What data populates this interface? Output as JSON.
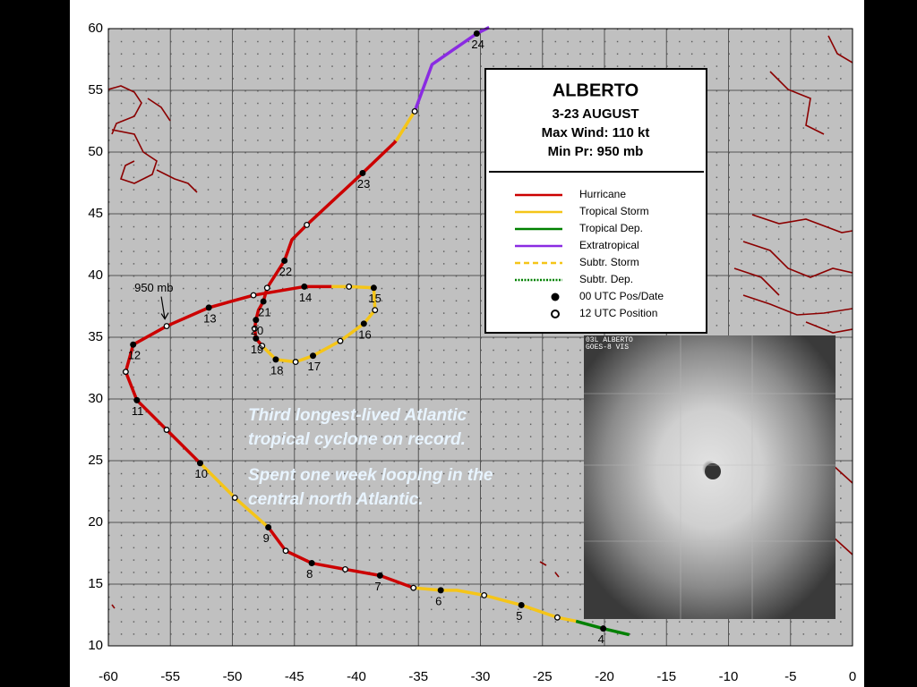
{
  "chart_data": {
    "type": "track",
    "xlim": [
      -60,
      0
    ],
    "ylim": [
      10,
      60
    ],
    "xticks": [
      -60,
      -55,
      -50,
      -45,
      -40,
      -35,
      -30,
      -25,
      -20,
      -15,
      -10,
      -5,
      0
    ],
    "yticks": [
      10,
      15,
      20,
      25,
      30,
      35,
      40,
      45,
      50,
      55,
      60
    ],
    "grid": true,
    "legend": {
      "title": "ALBERTO",
      "dates": "3-23 AUGUST",
      "max_wind": "Max Wind: 110 kt",
      "min_pressure": "Min Pr: 950 mb",
      "items": [
        {
          "label": "Hurricane",
          "color": "#cc0000",
          "style": "solid"
        },
        {
          "label": "Tropical Storm",
          "color": "#f5c518",
          "style": "solid"
        },
        {
          "label": "Tropical Dep.",
          "color": "#008000",
          "style": "solid"
        },
        {
          "label": "Extratropical",
          "color": "#8a2be2",
          "style": "solid"
        },
        {
          "label": "Subtr. Storm",
          "color": "#f5c518",
          "style": "dashed"
        },
        {
          "label": "Subtr. Dep.",
          "color": "#008000",
          "style": "dashed"
        },
        {
          "label": "00 UTC Pos/Date",
          "color": "#000000",
          "style": "dot-filled"
        },
        {
          "label": "12 UTC Position",
          "color": "#000000",
          "style": "dot-hollow"
        }
      ]
    },
    "segments": [
      {
        "color": "#008000",
        "x": [
          -18,
          -20.1,
          -22.3
        ],
        "y": [
          10.9,
          11.4,
          12.0
        ]
      },
      {
        "color": "#f5c518",
        "x": [
          -22.3,
          -23.8,
          -26.7,
          -29.7,
          -31.9,
          -33.2,
          -35.4
        ],
        "y": [
          12.0,
          12.3,
          13.3,
          14.1,
          14.5,
          14.5,
          14.7
        ]
      },
      {
        "color": "#cc0000",
        "x": [
          -35.4,
          -38.1,
          -40.9,
          -43.6,
          -45.7,
          -47.1
        ],
        "y": [
          14.7,
          15.7,
          16.2,
          16.7,
          17.7,
          19.6
        ]
      },
      {
        "color": "#f5c518",
        "x": [
          -47.1,
          -49.8,
          -52.6
        ],
        "y": [
          19.6,
          22.0,
          24.8
        ]
      },
      {
        "color": "#cc0000",
        "x": [
          -52.6,
          -55.3,
          -57.7,
          -58.6,
          -58.0,
          -55.3,
          -51.9,
          -48.3,
          -44.2,
          -42.0
        ],
        "y": [
          24.8,
          27.5,
          29.9,
          32.2,
          34.4,
          35.9,
          37.4,
          38.4,
          39.1,
          39.1
        ]
      },
      {
        "color": "#f5c518",
        "x": [
          -42.0,
          -40.6,
          -38.6,
          -38.5,
          -39.4,
          -41.3,
          -43.5,
          -44.9,
          -46.5,
          -47.6
        ],
        "y": [
          39.1,
          39.1,
          39.0,
          37.2,
          36.1,
          34.7,
          33.5,
          33.0,
          33.2,
          34.3
        ]
      },
      {
        "color": "#cc0000",
        "x": [
          -47.6,
          -48.1,
          -48.2,
          -48.1,
          -47.9,
          -47.5,
          -47.2,
          -45.8,
          -45.2,
          -44.0,
          -39.5,
          -36.8
        ],
        "y": [
          34.3,
          34.9,
          35.7,
          36.4,
          37.2,
          37.9,
          39.0,
          41.2,
          42.9,
          44.1,
          48.3,
          50.9
        ]
      },
      {
        "color": "#f5c518",
        "x": [
          -36.8,
          -35.3
        ],
        "y": [
          50.9,
          53.3
        ]
      },
      {
        "color": "#8a2be2",
        "x": [
          -35.3,
          -33.9,
          -30.3,
          -29.3
        ],
        "y": [
          53.3,
          57.1,
          59.6,
          60.1
        ]
      }
    ],
    "positions_00utc": {
      "x": [
        -20.1,
        -26.7,
        -33.2,
        -38.1,
        -43.6,
        -47.1,
        -52.6,
        -57.7,
        -58.0,
        -51.9,
        -44.2,
        -38.6,
        -39.4,
        -43.5,
        -46.5,
        -48.1,
        -48.1,
        -47.5,
        -45.8,
        -39.5,
        -30.3
      ],
      "y": [
        11.4,
        13.3,
        14.5,
        15.7,
        16.7,
        19.6,
        24.8,
        29.9,
        34.4,
        37.4,
        39.1,
        39.0,
        36.1,
        33.5,
        33.2,
        34.9,
        36.4,
        37.9,
        41.2,
        48.3,
        59.6
      ],
      "labels": [
        "4",
        "5",
        "6",
        "7",
        "8",
        "9",
        "10",
        "11",
        "12",
        "13",
        "14",
        "15",
        "16",
        "17",
        "18",
        "19",
        "20",
        "21",
        "22",
        "23",
        "24"
      ]
    },
    "positions_12utc": {
      "x": [
        -23.8,
        -29.7,
        -35.4,
        -40.9,
        -45.7,
        -49.8,
        -55.3,
        -58.6,
        -55.3,
        -48.3,
        -40.6,
        -38.5,
        -41.3,
        -44.9,
        -47.6,
        -48.2,
        -47.2,
        -44.0,
        -35.3
      ],
      "y": [
        12.3,
        14.1,
        14.7,
        16.2,
        17.7,
        22.0,
        27.5,
        32.2,
        35.9,
        38.4,
        39.1,
        37.2,
        34.7,
        33.0,
        34.3,
        35.7,
        39.0,
        44.1,
        53.3
      ]
    },
    "pressure_annotation": {
      "text": "950 mb",
      "x": -55.3,
      "y": 35.9
    },
    "notes": [
      "Third longest-lived Atlantic",
      "tropical cyclone on record.",
      "Spent one week looping in the",
      "central north Atlantic."
    ],
    "satellite": {
      "line1": "03L ALBERTO",
      "line2": "GOES-8 VIS"
    }
  }
}
